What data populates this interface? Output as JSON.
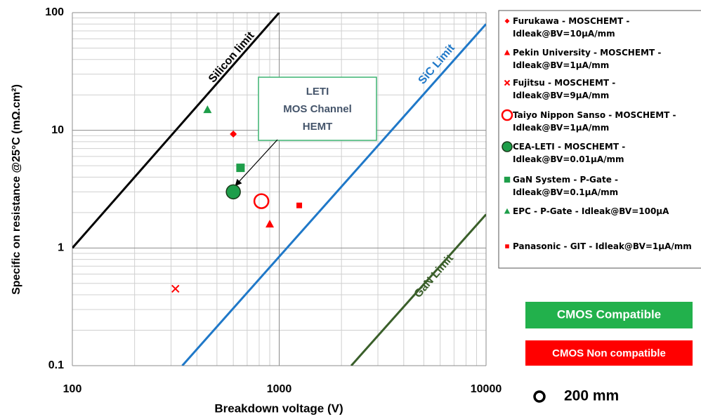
{
  "chart_data": {
    "type": "scatter",
    "xscale": "log",
    "yscale": "log",
    "xlabel": "Breakdown voltage (V)",
    "ylabel": "Specific on resistance @25°C  (mΩ.cm²)",
    "xlim": [
      100,
      10000
    ],
    "xticks": [
      100,
      1000,
      10000
    ],
    "ylim": [
      0.1,
      100
    ],
    "yticks": [
      0.1,
      1,
      10,
      100
    ],
    "grid": true,
    "minor_grid": true,
    "legend": "right",
    "series": [
      {
        "name": "Furukawa - MOSCHEMT - Idleak@BV=10µA/mm",
        "color": "#ff0000",
        "marker": "diamond",
        "x": [
          600
        ],
        "values": [
          9.3
        ]
      },
      {
        "name": "Pekin University - MOSCHEMT - Idleak@BV=1µA/mm",
        "color": "#ff0000",
        "marker": "triangle",
        "x": [
          900
        ],
        "values": [
          1.6
        ]
      },
      {
        "name": "Fujitsu  - MOSCHEMT - Idleak@BV=9µA/mm",
        "color": "#ff0000",
        "marker": "x",
        "x": [
          315
        ],
        "values": [
          0.45
        ]
      },
      {
        "name": "Taiyo Nippon Sanso - MOSCHEMT - Idleak@BV=1µA/mm",
        "color": "#ff0000",
        "marker": "circle-open",
        "x": [
          820
        ],
        "values": [
          2.5
        ]
      },
      {
        "name": "CEA-LETI - MOSCHEMT - Idleak@BV=0.01µA/mm",
        "color": "#1e9e4a",
        "marker": "circle",
        "x": [
          600
        ],
        "values": [
          3
        ]
      },
      {
        "name": "GaN System - P-Gate - Idleak@BV=0.1µA/mm",
        "color": "#1e9e4a",
        "marker": "square",
        "x": [
          650
        ],
        "values": [
          4.8
        ]
      },
      {
        "name": "EPC - P-Gate - Idleak@BV=100µA",
        "color": "#1e9e4a",
        "marker": "triangle",
        "x": [
          450
        ],
        "values": [
          15
        ]
      },
      {
        "name": "Panasonic - GIT - Idleak@BV=1µA/mm",
        "color": "#ff0000",
        "marker": "square-small",
        "x": [
          1250
        ],
        "values": [
          2.3
        ]
      }
    ],
    "lines": [
      {
        "name": "Silicon limit",
        "color": "#000000",
        "x": [
          100,
          1000
        ],
        "values": [
          1,
          100
        ]
      },
      {
        "name": "SiC Limit",
        "color": "#1f78c8",
        "x": [
          340,
          10000
        ],
        "values": [
          0.1,
          80
        ]
      },
      {
        "name": "GaN Limit",
        "color": "#3a5f2a",
        "x": [
          2230,
          10000
        ],
        "values": [
          0.1,
          1.93
        ]
      }
    ],
    "annotation": {
      "text": [
        "LETI",
        "MOS Channel",
        "HEMT"
      ]
    },
    "badges": [
      {
        "text": "CMOS Compatible",
        "color": "#22b14c"
      },
      {
        "text": "CMOS Non compatible",
        "color": "#ff0000"
      }
    ],
    "size_note": "200 mm"
  }
}
